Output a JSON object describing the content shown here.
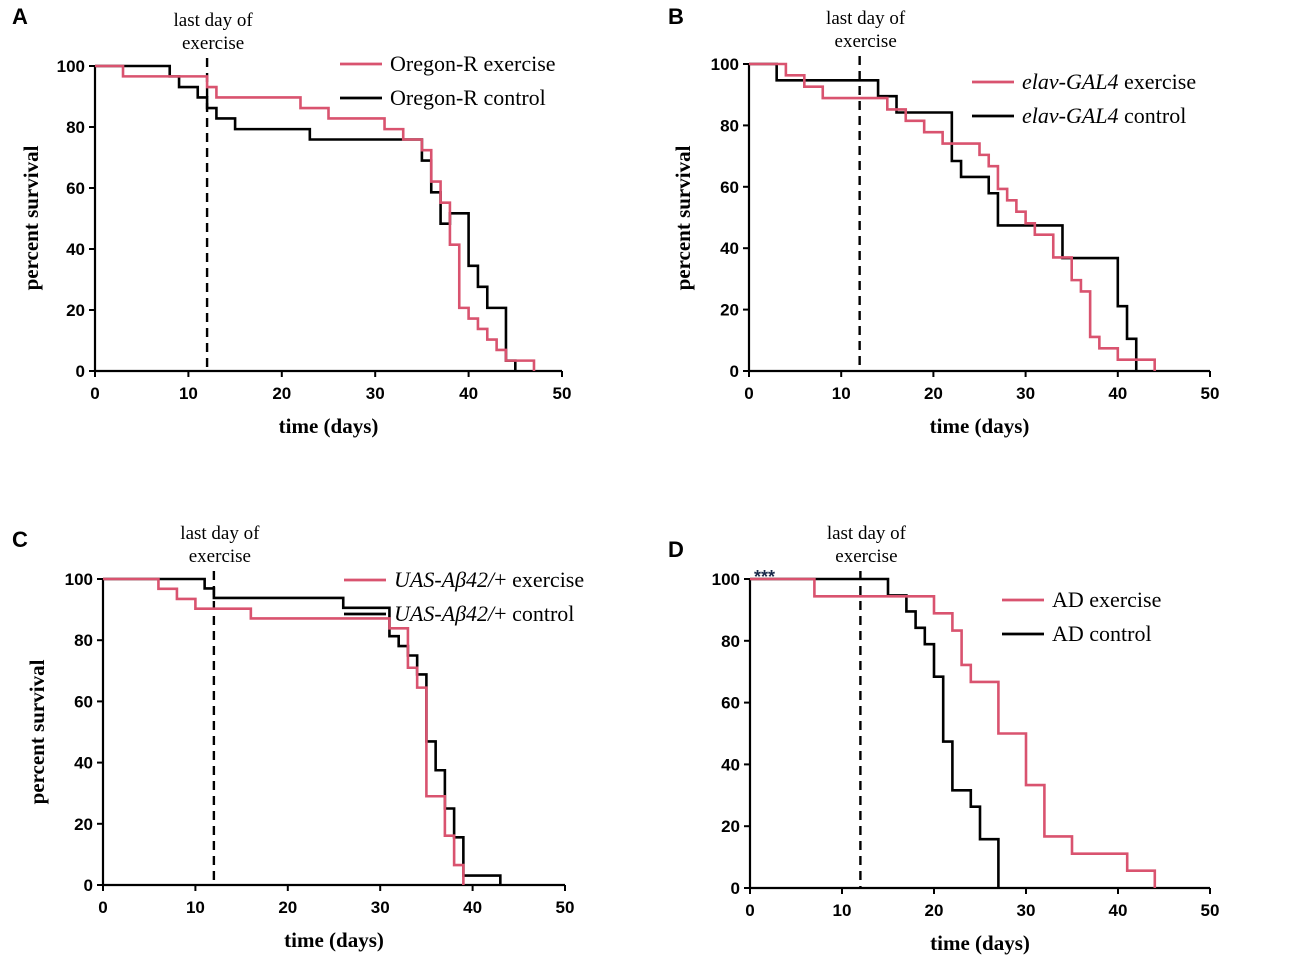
{
  "colors": {
    "exercise": "#d9536f",
    "control": "#000000"
  },
  "chart_data": [
    {
      "panel": "A",
      "type": "line",
      "step": true,
      "xlabel": "time (days)",
      "ylabel": "percent survival",
      "xlim": [
        0,
        50
      ],
      "ylim": [
        0,
        100
      ],
      "xticks": [
        0,
        10,
        20,
        30,
        40,
        50
      ],
      "yticks": [
        0,
        20,
        40,
        60,
        80,
        100
      ],
      "annotation": {
        "lines": [
          "last day of",
          "exercise"
        ],
        "x": 12
      },
      "significance": "",
      "legend": {
        "placement": "top-right",
        "entries": [
          {
            "series": 0,
            "parts": [
              {
                "text": "Oregon-R exercise",
                "italic": false
              }
            ]
          },
          {
            "series": 1,
            "parts": [
              {
                "text": "Oregon-R control",
                "italic": false
              }
            ]
          }
        ]
      },
      "series": [
        {
          "name": "Oregon-R exercise",
          "color_key": "exercise",
          "x": [
            0,
            3,
            12,
            13,
            22,
            25,
            31,
            33,
            35,
            36,
            37,
            38,
            39,
            40,
            41,
            42,
            43,
            44,
            46,
            47
          ],
          "y": [
            100,
            96.6,
            93.1,
            89.7,
            86.2,
            82.8,
            79.3,
            75.9,
            72.4,
            62.1,
            55.2,
            41.4,
            20.7,
            17.2,
            13.8,
            10.3,
            6.9,
            3.4,
            3.4,
            0
          ]
        },
        {
          "name": "Oregon-R control",
          "color_key": "control",
          "x": [
            0,
            8,
            9,
            11,
            12,
            13,
            15,
            23,
            35,
            36,
            37,
            38,
            40,
            41,
            42,
            44,
            45
          ],
          "y": [
            100,
            96.6,
            93.1,
            89.7,
            86.2,
            82.8,
            79.3,
            75.9,
            69.0,
            58.6,
            48.3,
            51.7,
            34.5,
            27.6,
            20.7,
            3.4,
            0
          ]
        }
      ]
    },
    {
      "panel": "B",
      "type": "line",
      "step": true,
      "xlabel": "time (days)",
      "ylabel": "percent survival",
      "xlim": [
        0,
        50
      ],
      "ylim": [
        0,
        100
      ],
      "xticks": [
        0,
        10,
        20,
        30,
        40,
        50
      ],
      "yticks": [
        0,
        20,
        40,
        60,
        80,
        100
      ],
      "annotation": {
        "lines": [
          "last day of",
          "exercise"
        ],
        "x": 12
      },
      "significance": "",
      "legend": {
        "placement": "top-right",
        "entries": [
          {
            "series": 0,
            "parts": [
              {
                "text": "elav-GAL4",
                "italic": true
              },
              {
                "text": " exercise",
                "italic": false
              }
            ]
          },
          {
            "series": 1,
            "parts": [
              {
                "text": "elav-GAL4",
                "italic": true
              },
              {
                "text": " control",
                "italic": false
              }
            ]
          }
        ]
      },
      "series": [
        {
          "name": "elav-GAL4 exercise",
          "color_key": "exercise",
          "x": [
            0,
            4,
            6,
            8,
            15,
            17,
            19,
            21,
            25,
            26,
            27,
            28,
            29,
            30,
            31,
            33,
            35,
            36,
            37,
            38,
            40,
            41,
            44
          ],
          "y": [
            100,
            96.3,
            92.6,
            88.9,
            85.2,
            81.5,
            77.8,
            74.1,
            70.4,
            66.7,
            59.3,
            55.6,
            51.9,
            48.1,
            44.4,
            37.0,
            29.6,
            25.9,
            11.1,
            7.4,
            3.7,
            3.7,
            0
          ]
        },
        {
          "name": "elav-GAL4 control",
          "color_key": "control",
          "x": [
            0,
            3,
            14,
            16,
            20,
            22,
            23,
            26,
            27,
            34,
            35,
            40,
            41,
            42
          ],
          "y": [
            100,
            94.7,
            89.5,
            84.2,
            84.2,
            68.4,
            63.2,
            57.9,
            47.4,
            36.8,
            36.8,
            21.1,
            10.5,
            0
          ]
        }
      ]
    },
    {
      "panel": "C",
      "type": "line",
      "step": true,
      "xlabel": "time (days)",
      "ylabel": "percent survival",
      "xlim": [
        0,
        50
      ],
      "ylim": [
        0,
        100
      ],
      "xticks": [
        0,
        10,
        20,
        30,
        40,
        50
      ],
      "yticks": [
        0,
        20,
        40,
        60,
        80,
        100
      ],
      "annotation": {
        "lines": [
          "last day of",
          "exercise"
        ],
        "x": 12
      },
      "significance": "",
      "legend": {
        "placement": "top-right",
        "entries": [
          {
            "series": 0,
            "parts": [
              {
                "text": "UAS-Aβ42/",
                "italic": true
              },
              {
                "text": "+ exercise",
                "italic": false
              }
            ]
          },
          {
            "series": 1,
            "parts": [
              {
                "text": "UAS-Aβ42/",
                "italic": true
              },
              {
                "text": "+ control",
                "italic": false
              }
            ]
          }
        ]
      },
      "series": [
        {
          "name": "UAS-Aβ42/+ exercise",
          "color_key": "exercise",
          "x": [
            0,
            6,
            8,
            10,
            16,
            31,
            33,
            34,
            35,
            37,
            38,
            39
          ],
          "y": [
            100,
            96.8,
            93.5,
            90.3,
            87.1,
            83.9,
            71.0,
            64.5,
            29.0,
            16.1,
            6.5,
            0
          ]
        },
        {
          "name": "UAS-Aβ42/+ control",
          "color_key": "control",
          "x": [
            0,
            11,
            12,
            26,
            31,
            32,
            33,
            34,
            35,
            36,
            37,
            38,
            39,
            40,
            43
          ],
          "y": [
            100,
            96.9,
            93.8,
            90.6,
            81.3,
            78.1,
            75.0,
            68.8,
            46.9,
            37.5,
            25.0,
            15.6,
            3.1,
            3.1,
            0
          ]
        }
      ]
    },
    {
      "panel": "D",
      "type": "line",
      "step": true,
      "xlabel": "time (days)",
      "ylabel": "",
      "xlim": [
        0,
        50
      ],
      "ylim": [
        0,
        100
      ],
      "xticks": [
        0,
        10,
        20,
        30,
        40,
        50
      ],
      "yticks": [
        0,
        20,
        40,
        60,
        80,
        100
      ],
      "annotation": {
        "lines": [
          "last day of",
          "exercise"
        ],
        "x": 12
      },
      "significance": "***",
      "legend": {
        "placement": "top-right",
        "entries": [
          {
            "series": 0,
            "parts": [
              {
                "text": "AD exercise",
                "italic": false
              }
            ]
          },
          {
            "series": 1,
            "parts": [
              {
                "text": "AD control",
                "italic": false
              }
            ]
          }
        ]
      },
      "series": [
        {
          "name": "AD exercise",
          "color_key": "exercise",
          "x": [
            0,
            7,
            20,
            22,
            23,
            24,
            27,
            30,
            32,
            33,
            35,
            41,
            44
          ],
          "y": [
            100,
            94.4,
            88.9,
            83.3,
            72.2,
            66.7,
            50.0,
            33.3,
            16.7,
            16.7,
            11.1,
            5.6,
            0
          ]
        },
        {
          "name": "AD control",
          "color_key": "control",
          "x": [
            0,
            15,
            17,
            18,
            19,
            20,
            21,
            22,
            24,
            25,
            27
          ],
          "y": [
            100,
            94.7,
            89.5,
            84.2,
            78.9,
            68.4,
            47.4,
            31.6,
            26.3,
            15.8,
            0
          ]
        }
      ]
    }
  ]
}
